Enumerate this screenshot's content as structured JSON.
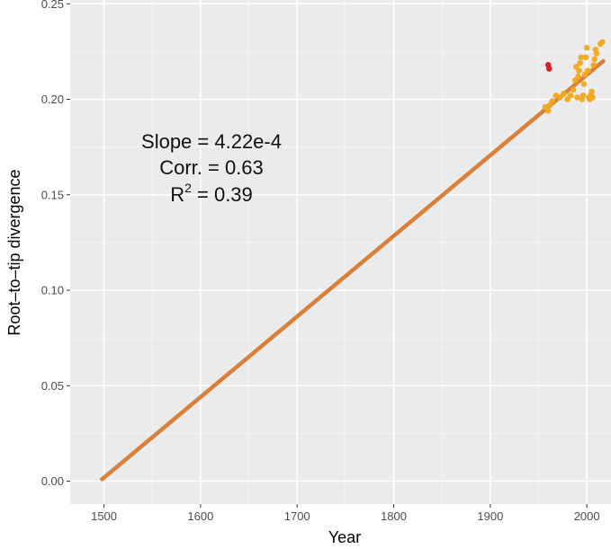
{
  "chart_data": {
    "type": "scatter",
    "xlabel": "Year",
    "ylabel": "Root–to–tip divergence",
    "xlim": [
      1465,
      2025
    ],
    "ylim": [
      -0.012,
      0.252
    ],
    "x_ticks": [
      "1500",
      "1600",
      "1700",
      "1800",
      "1900",
      "2000"
    ],
    "y_ticks": [
      "0.00",
      "0.05",
      "0.10",
      "0.15",
      "0.20",
      "0.25"
    ],
    "grid": true,
    "annotation": {
      "slope_label": "Slope = 4.22e-4",
      "corr_label": "Corr. = 0.63",
      "r2_prefix": "R",
      "r2_exp": "2",
      "r2_value": " = 0.39"
    },
    "fit_line": {
      "x": [
        1498,
        2017
      ],
      "y": [
        0.001,
        0.22
      ],
      "color": "#d9813a"
    },
    "series": [
      {
        "color": "#f2a91c",
        "points": [
          [
            1957,
            0.196
          ],
          [
            1960,
            0.194
          ],
          [
            1962,
            0.197
          ],
          [
            1964,
            0.199
          ],
          [
            1968,
            0.202
          ],
          [
            1972,
            0.201
          ],
          [
            1976,
            0.203
          ],
          [
            1980,
            0.2
          ],
          [
            1983,
            0.202
          ],
          [
            1986,
            0.205
          ],
          [
            1988,
            0.21
          ],
          [
            1989,
            0.217
          ],
          [
            1990,
            0.201
          ],
          [
            1991,
            0.212
          ],
          [
            1992,
            0.215
          ],
          [
            1993,
            0.219
          ],
          [
            1994,
            0.222
          ],
          [
            1995,
            0.2
          ],
          [
            1996,
            0.202
          ],
          [
            1997,
            0.208
          ],
          [
            1998,
            0.213
          ],
          [
            1999,
            0.222
          ],
          [
            2000,
            0.227
          ],
          [
            2001,
            0.215
          ],
          [
            2002,
            0.201
          ],
          [
            2003,
            0.2
          ],
          [
            2004,
            0.202
          ],
          [
            2005,
            0.204
          ],
          [
            2006,
            0.201
          ],
          [
            2007,
            0.218
          ],
          [
            2008,
            0.221
          ],
          [
            2009,
            0.226
          ],
          [
            2010,
            0.224
          ],
          [
            2014,
            0.229
          ],
          [
            2016,
            0.23
          ]
        ]
      },
      {
        "color": "#d7191c",
        "points": [
          [
            1960,
            0.218
          ],
          [
            1961,
            0.216
          ]
        ]
      }
    ]
  }
}
